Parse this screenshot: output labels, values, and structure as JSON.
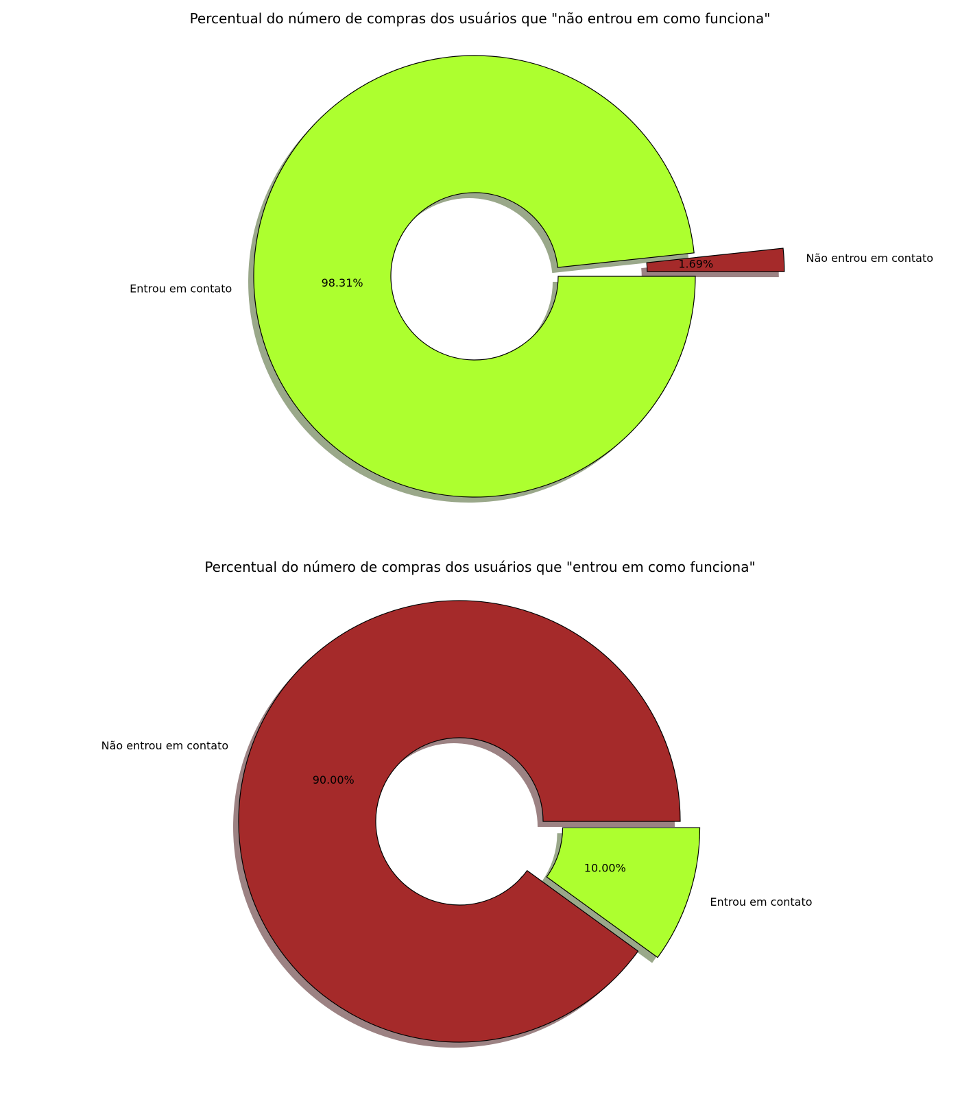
{
  "chart_data": [
    {
      "type": "pie",
      "title": "Percentual do número de compras dos usuários que \"não entrou em como funciona\"",
      "slices": [
        {
          "label": "Não entrou em contato",
          "value": 1.69,
          "pct_label": "1.69%",
          "color": "#a52a2a",
          "explode": true
        },
        {
          "label": "Entrou em contato",
          "value": 98.31,
          "pct_label": "98.31%",
          "color": "#adff2f",
          "explode": false
        }
      ],
      "donut": true,
      "shadow": true
    },
    {
      "type": "pie",
      "title": "Percentual do número de compras dos usuários que \"entrou em como funciona\"",
      "slices": [
        {
          "label": "Não entrou em contato",
          "value": 90.0,
          "pct_label": "90.00%",
          "color": "#a52a2a",
          "explode": false
        },
        {
          "label": "Entrou em contato",
          "value": 10.0,
          "pct_label": "10.00%",
          "color": "#adff2f",
          "explode": true
        }
      ],
      "donut": true,
      "shadow": true
    }
  ]
}
